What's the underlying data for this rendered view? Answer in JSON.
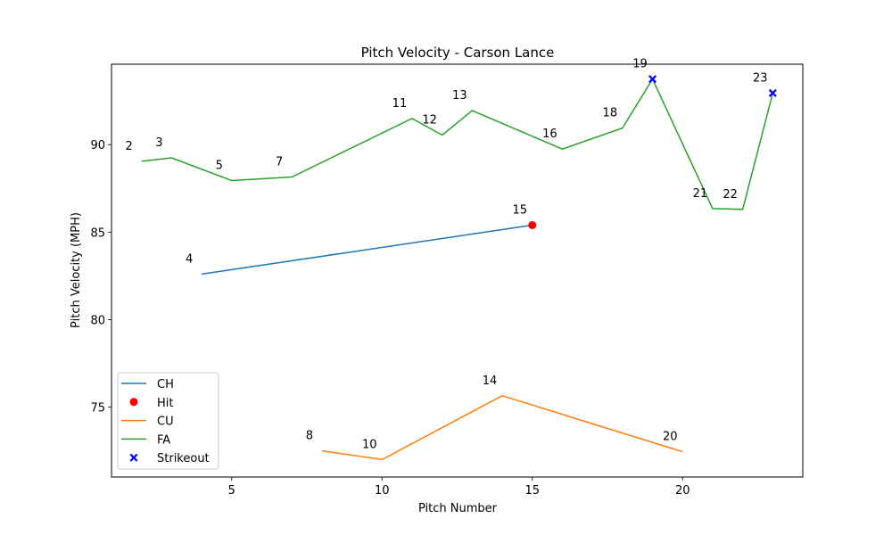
{
  "chart_data": {
    "type": "line",
    "title": "Pitch Velocity - Carson Lance",
    "xlabel": "Pitch Number",
    "ylabel": "Pitch Velocity (MPH)",
    "xlim": [
      1.0,
      24.0
    ],
    "ylim": [
      71.0,
      94.6
    ],
    "xticks": [
      5,
      10,
      15,
      20
    ],
    "yticks": [
      75,
      80,
      85,
      90
    ],
    "grid": false,
    "legend_position": "lower-left",
    "series": [
      {
        "name": "CH",
        "color": "#1f77b4",
        "x": [
          4,
          15
        ],
        "y": [
          82.6,
          85.4
        ]
      },
      {
        "name": "CU",
        "color": "#ff7f0e",
        "x": [
          8,
          10,
          14,
          20
        ],
        "y": [
          72.5,
          72.0,
          75.65,
          72.45
        ]
      },
      {
        "name": "FA",
        "color": "#2ca02c",
        "x": [
          2,
          3,
          5,
          7,
          11,
          12,
          13,
          16,
          18,
          19,
          21,
          22,
          23
        ],
        "y": [
          89.05,
          89.25,
          87.95,
          88.15,
          91.5,
          90.55,
          91.95,
          89.75,
          90.95,
          93.75,
          86.35,
          86.3,
          92.95
        ]
      }
    ],
    "markers": [
      {
        "name": "Hit",
        "color": "#ff0000",
        "shape": "circle",
        "points": [
          {
            "x": 15,
            "y": 85.4
          }
        ]
      },
      {
        "name": "Strikeout",
        "color": "#0000ff",
        "shape": "x",
        "points": [
          {
            "x": 19,
            "y": 93.75
          },
          {
            "x": 23,
            "y": 92.95
          }
        ]
      }
    ],
    "legend": [
      "CH",
      "Hit",
      "CU",
      "FA",
      "Strikeout"
    ],
    "annotations": [
      {
        "text": "2",
        "x": 2,
        "y": 89.05
      },
      {
        "text": "3",
        "x": 3,
        "y": 89.25
      },
      {
        "text": "4",
        "x": 4,
        "y": 82.6
      },
      {
        "text": "5",
        "x": 5,
        "y": 87.95
      },
      {
        "text": "7",
        "x": 7,
        "y": 88.15
      },
      {
        "text": "8",
        "x": 8,
        "y": 72.5
      },
      {
        "text": "10",
        "x": 10,
        "y": 72.0
      },
      {
        "text": "11",
        "x": 11,
        "y": 91.5
      },
      {
        "text": "12",
        "x": 12,
        "y": 90.55
      },
      {
        "text": "13",
        "x": 13,
        "y": 91.95
      },
      {
        "text": "14",
        "x": 14,
        "y": 75.65
      },
      {
        "text": "15",
        "x": 15,
        "y": 85.4
      },
      {
        "text": "16",
        "x": 16,
        "y": 89.75
      },
      {
        "text": "18",
        "x": 18,
        "y": 90.95
      },
      {
        "text": "19",
        "x": 19,
        "y": 93.75
      },
      {
        "text": "20",
        "x": 20,
        "y": 72.45
      },
      {
        "text": "21",
        "x": 21,
        "y": 86.35
      },
      {
        "text": "22",
        "x": 22,
        "y": 86.3
      },
      {
        "text": "23",
        "x": 23,
        "y": 92.95
      }
    ]
  }
}
